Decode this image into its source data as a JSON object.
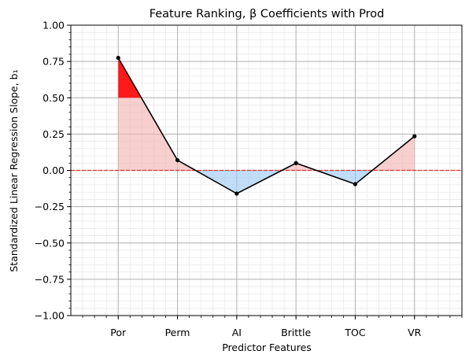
{
  "chart_data": {
    "type": "line",
    "title": "Feature Ranking, β Coefficients with Prod",
    "xlabel": "Predictor Features",
    "ylabel": "Standardized Linear Regression Slope, b₁",
    "categories": [
      "Por",
      "Perm",
      "AI",
      "Brittle",
      "TOC",
      "VR"
    ],
    "values": [
      0.775,
      0.07,
      -0.16,
      0.05,
      -0.095,
      0.235
    ],
    "ylim": [
      -1.0,
      1.0
    ],
    "yticks": [
      "1.00",
      "0.75",
      "0.50",
      "0.25",
      "0.00",
      "−0.25",
      "−0.50",
      "−0.75",
      "−1.00"
    ],
    "yticks_values": [
      1.0,
      0.75,
      0.5,
      0.25,
      0.0,
      -0.25,
      -0.5,
      -0.75,
      -1.0
    ],
    "reference_line": 0.0,
    "highlight_threshold": 0.5,
    "grid": true,
    "colors": {
      "line": "#000000",
      "positive_fill": "#f4b6b6",
      "negative_fill": "#9fcdf5",
      "highlight_fill": "#ff1a1a",
      "reference_line": "#e53030",
      "major_grid": "#b0b0b0",
      "minor_grid": "#e6e6e6"
    }
  }
}
